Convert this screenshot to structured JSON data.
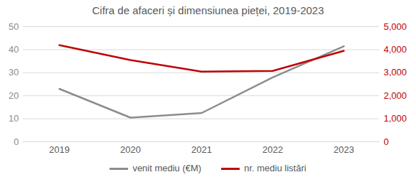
{
  "chart_data": {
    "type": "line",
    "title": "Cifra de afaceri și dimensiunea pieței, 2019-2023",
    "categories": [
      "2019",
      "2020",
      "2021",
      "2022",
      "2023"
    ],
    "series": [
      {
        "name": "venit mediu (€M)",
        "color": "#8c8c8c",
        "values": [
          23,
          10.5,
          12.5,
          28,
          41.5
        ]
      },
      {
        "name": "nr. mediu listări",
        "color": "#c00000",
        "values": [
          4200,
          3550,
          3050,
          3080,
          3950
        ],
        "axis": "y2"
      }
    ],
    "ylim": [
      0,
      50
    ],
    "yticks": [
      0,
      10,
      20,
      30,
      40,
      50
    ],
    "y2lim": [
      0,
      5000
    ],
    "y2ticks": [
      0,
      {
        "value": 1000,
        "label": "1,000"
      },
      {
        "value": 2000,
        "label": "2,000"
      },
      {
        "value": 3000,
        "label": "3,000"
      },
      {
        "value": 4000,
        "label": "4,000"
      },
      {
        "value": 5000,
        "label": "5,000"
      }
    ],
    "grid": true,
    "legend": "bottom"
  }
}
